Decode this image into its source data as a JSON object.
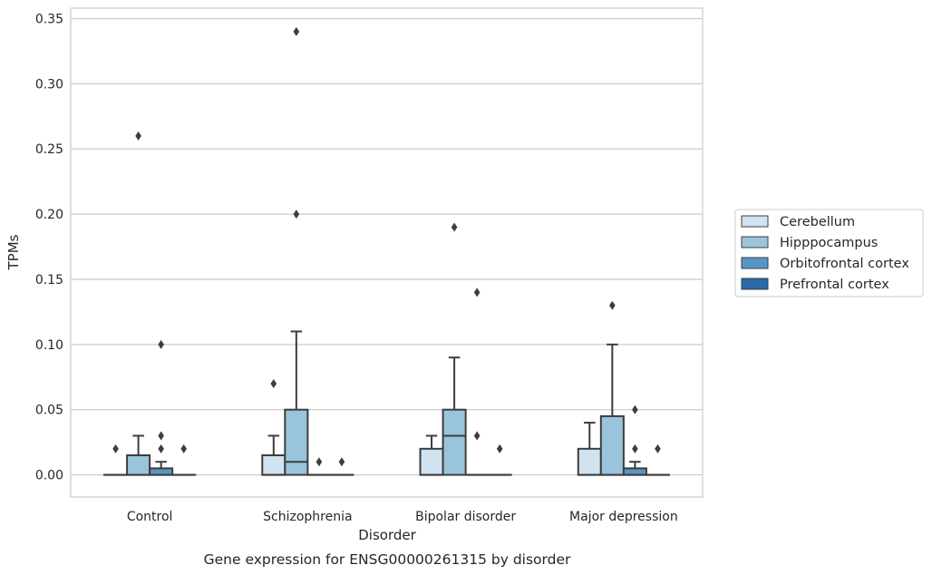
{
  "chart_data": {
    "type": "box",
    "title": "",
    "caption": "Gene expression for ENSG00000261315 by disorder",
    "xlabel": "Disorder",
    "ylabel": "TPMs",
    "ylim": [
      -0.017,
      0.358
    ],
    "yticks": [
      0.0,
      0.05,
      0.1,
      0.15,
      0.2,
      0.25,
      0.3,
      0.35
    ],
    "ytick_labels": [
      "0.00",
      "0.05",
      "0.10",
      "0.15",
      "0.20",
      "0.25",
      "0.30",
      "0.35"
    ],
    "grid": "horizontal",
    "legend_position": "right",
    "categories": [
      "Control",
      "Schizophrenia",
      "Bipolar disorder",
      "Major depression"
    ],
    "series": [
      {
        "name": "Cerebellum",
        "color": "#d1e2f1"
      },
      {
        "name": "Hipppocampus",
        "color": "#9ac4dc"
      },
      {
        "name": "Orbitofrontal cortex",
        "color": "#5796c4"
      },
      {
        "name": "Prefrontal cortex",
        "color": "#2a6aa8"
      }
    ],
    "boxes": [
      [
        {
          "q1": 0,
          "median": 0,
          "q3": 0,
          "whisker_low": 0,
          "whisker_high": 0,
          "outliers": [
            0.02
          ]
        },
        {
          "q1": 0,
          "median": 0,
          "q3": 0.015,
          "whisker_low": 0,
          "whisker_high": 0.03,
          "outliers": [
            0.26
          ]
        },
        {
          "q1": 0,
          "median": 0,
          "q3": 0.005,
          "whisker_low": 0,
          "whisker_high": 0.01,
          "outliers": [
            0.1,
            0.03,
            0.02
          ]
        },
        {
          "q1": 0,
          "median": 0,
          "q3": 0,
          "whisker_low": 0,
          "whisker_high": 0,
          "outliers": [
            0.02
          ]
        }
      ],
      [
        {
          "q1": 0,
          "median": 0,
          "q3": 0.015,
          "whisker_low": 0,
          "whisker_high": 0.03,
          "outliers": [
            0.07
          ]
        },
        {
          "q1": 0,
          "median": 0.01,
          "q3": 0.05,
          "whisker_low": 0,
          "whisker_high": 0.11,
          "outliers": [
            0.34,
            0.2
          ]
        },
        {
          "q1": 0,
          "median": 0,
          "q3": 0,
          "whisker_low": 0,
          "whisker_high": 0,
          "outliers": [
            0.01
          ]
        },
        {
          "q1": 0,
          "median": 0,
          "q3": 0,
          "whisker_low": 0,
          "whisker_high": 0,
          "outliers": [
            0.01
          ]
        }
      ],
      [
        {
          "q1": 0,
          "median": 0,
          "q3": 0.02,
          "whisker_low": 0,
          "whisker_high": 0.03,
          "outliers": []
        },
        {
          "q1": 0,
          "median": 0.03,
          "q3": 0.05,
          "whisker_low": 0,
          "whisker_high": 0.09,
          "outliers": [
            0.19
          ]
        },
        {
          "q1": 0,
          "median": 0,
          "q3": 0,
          "whisker_low": 0,
          "whisker_high": 0,
          "outliers": [
            0.14,
            0.03
          ]
        },
        {
          "q1": 0,
          "median": 0,
          "q3": 0,
          "whisker_low": 0,
          "whisker_high": 0,
          "outliers": [
            0.02
          ]
        }
      ],
      [
        {
          "q1": 0,
          "median": 0,
          "q3": 0.02,
          "whisker_low": 0,
          "whisker_high": 0.04,
          "outliers": []
        },
        {
          "q1": 0,
          "median": 0,
          "q3": 0.045,
          "whisker_low": 0,
          "whisker_high": 0.1,
          "outliers": [
            0.13
          ]
        },
        {
          "q1": 0,
          "median": 0,
          "q3": 0.005,
          "whisker_low": 0,
          "whisker_high": 0.01,
          "outliers": [
            0.05,
            0.02
          ]
        },
        {
          "q1": 0,
          "median": 0,
          "q3": 0,
          "whisker_low": 0,
          "whisker_high": 0,
          "outliers": [
            0.02
          ]
        }
      ]
    ]
  }
}
